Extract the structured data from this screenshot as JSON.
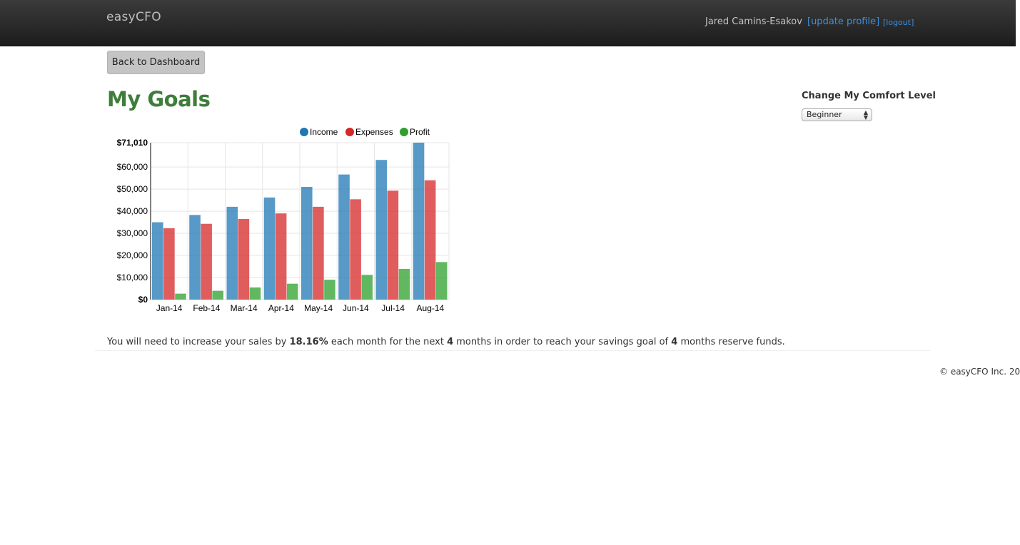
{
  "header": {
    "brand": "easyCFO",
    "user_name": "Jared Camins-Esakov",
    "update_profile": "[update profile]",
    "logout": "[logout]"
  },
  "back_button": "Back to Dashboard",
  "page_title": "My Goals",
  "comfort": {
    "title": "Change My Comfort Level",
    "selected": "Beginner"
  },
  "goal": {
    "part1": "You will need to increase your sales by ",
    "pct": "18.16%",
    "part2": " each month for the next ",
    "months_next": "4",
    "part3": " months in order to reach your savings goal of ",
    "months_goal": "4",
    "part4": " months reserve funds."
  },
  "footer": "© easyCFO Inc. 20",
  "colors": {
    "income": "#1f77b4",
    "expenses": "#d62728",
    "profit": "#2ca02c"
  },
  "chart_data": {
    "type": "bar",
    "categories": [
      "Jan-14",
      "Feb-14",
      "Mar-14",
      "Apr-14",
      "May-14",
      "Jun-14",
      "Jul-14",
      "Aug-14"
    ],
    "series": [
      {
        "name": "Income",
        "values": [
          35000,
          38300,
          42000,
          46200,
          51000,
          56600,
          63200,
          71010
        ]
      },
      {
        "name": "Expenses",
        "values": [
          32300,
          34300,
          36500,
          39000,
          42000,
          45400,
          49300,
          54000
        ]
      },
      {
        "name": "Profit",
        "values": [
          2700,
          4000,
          5500,
          7200,
          9000,
          11200,
          13900,
          17000
        ]
      }
    ],
    "yticks": [
      "$0",
      "$10,000",
      "$20,000",
      "$30,000",
      "$40,000",
      "$50,000",
      "$60,000",
      "$71,010"
    ],
    "ytick_values": [
      0,
      10000,
      20000,
      30000,
      40000,
      50000,
      60000,
      71010
    ],
    "ylim": [
      0,
      71010
    ],
    "legend_position": "top-right",
    "grid": true
  }
}
